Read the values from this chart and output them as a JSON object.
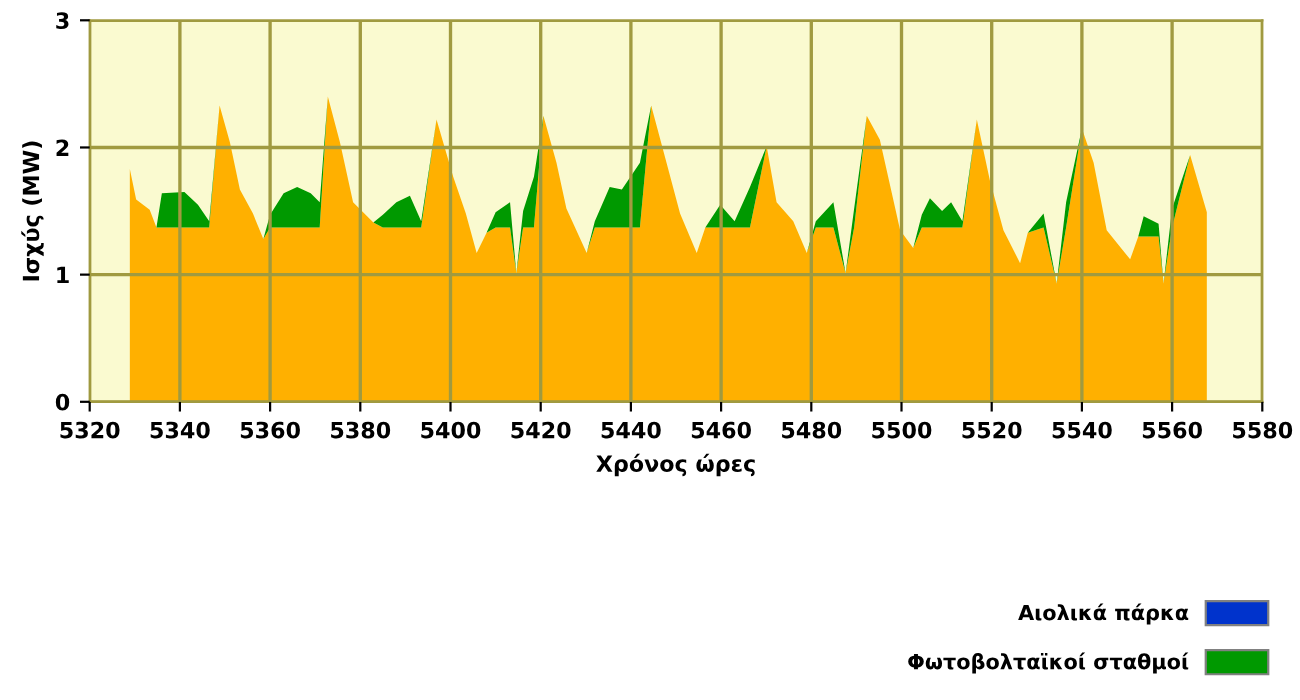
{
  "chart_data": {
    "type": "area",
    "stacked": true,
    "xlabel": "Χρόνος ώρες",
    "ylabel": "Ισχύς (MW)",
    "x": [
      5328.9,
      5330.3,
      5333.3,
      5334.8,
      5336,
      5341,
      5344,
      5346.5,
      5348.8,
      5351.1,
      5353.3,
      5356.2,
      5358.5,
      5360,
      5363,
      5366,
      5369,
      5371,
      5372.8,
      5375.5,
      5378.4,
      5382.9,
      5385,
      5388,
      5391,
      5393.5,
      5396.9,
      5400.6,
      5403.4,
      5405.8,
      5408,
      5410,
      5413.2,
      5414.6,
      5416.1,
      5418.5,
      5420.6,
      5423.5,
      5425.7,
      5430.2,
      5432,
      5435.3,
      5438,
      5442,
      5444.5,
      5447.9,
      5450.9,
      5454.6,
      5456.5,
      5459.8,
      5463,
      5466.4,
      5470.1,
      5472.3,
      5476,
      5479,
      5481,
      5484.9,
      5487.6,
      5489.5,
      5492.3,
      5495.2,
      5499.7,
      5502.6,
      5504.5,
      5506.3,
      5509,
      5511,
      5513.5,
      5516.7,
      5519.6,
      5522.6,
      5526.3,
      5528,
      5531.5,
      5534.4,
      5536.5,
      5540,
      5542.6,
      5545.5,
      5550.7,
      5552.5,
      5553.7,
      5557,
      5558.1,
      5560,
      5564,
      5567.7
    ],
    "series": [
      {
        "color": "#ffb000",
        "values": [
          1.83,
          1.59,
          1.51,
          1.37,
          1.37,
          1.37,
          1.37,
          1.37,
          2.33,
          2.04,
          1.67,
          1.48,
          1.28,
          1.37,
          1.37,
          1.37,
          1.37,
          1.37,
          2.4,
          2.04,
          1.57,
          1.41,
          1.37,
          1.37,
          1.37,
          1.37,
          2.22,
          1.77,
          1.48,
          1.17,
          1.33,
          1.37,
          1.37,
          1.01,
          1.37,
          1.37,
          2.25,
          1.88,
          1.52,
          1.17,
          1.37,
          1.37,
          1.37,
          1.37,
          2.33,
          1.88,
          1.48,
          1.17,
          1.37,
          1.37,
          1.37,
          1.37,
          2.01,
          1.57,
          1.42,
          1.17,
          1.37,
          1.37,
          1.01,
          1.37,
          2.25,
          2.06,
          1.35,
          1.21,
          1.37,
          1.37,
          1.37,
          1.37,
          1.37,
          2.22,
          1.74,
          1.35,
          1.09,
          1.33,
          1.37,
          0.93,
          1.37,
          2.15,
          1.88,
          1.35,
          1.12,
          1.3,
          1.3,
          1.3,
          0.93,
          1.37,
          1.94,
          1.49
        ]
      },
      {
        "name": "Αιολικά πάρκα",
        "color": "#0033cc",
        "values": [
          null,
          null,
          null,
          null,
          null,
          null,
          null,
          null,
          null,
          null,
          null,
          null,
          null,
          null,
          null,
          null,
          null,
          null,
          null,
          null,
          null,
          null,
          null,
          null,
          null,
          null,
          null,
          null,
          null,
          null,
          null,
          null,
          null,
          null,
          null,
          null,
          null,
          null,
          null,
          null,
          null,
          null,
          null,
          null,
          null,
          null,
          null,
          null,
          null,
          null,
          null,
          null,
          null,
          null,
          null,
          null,
          null,
          null,
          null,
          null,
          null,
          null,
          null,
          null,
          null,
          null,
          null,
          null,
          null,
          null,
          null,
          null,
          null,
          null,
          null,
          null,
          null,
          null,
          null,
          null,
          null,
          null,
          null,
          null,
          null,
          null,
          null,
          null
        ]
      },
      {
        "name": "Φωτοβολταϊκοί σταθμοί",
        "color": "#009900",
        "values": [
          0,
          0,
          0,
          0,
          0.27,
          0.28,
          0.18,
          0.05,
          0,
          0,
          0,
          0,
          0,
          0.1,
          0.27,
          0.32,
          0.27,
          0.2,
          0,
          0,
          0,
          0,
          0.1,
          0.2,
          0.25,
          0.05,
          0,
          0,
          0,
          0,
          0,
          0.12,
          0.2,
          0,
          0.13,
          0.4,
          0,
          0,
          0,
          0,
          0.05,
          0.32,
          0.3,
          0.51,
          0,
          0,
          0,
          0,
          0,
          0.18,
          0.05,
          0.32,
          0,
          0,
          0,
          0,
          0.05,
          0.2,
          0,
          0.15,
          0,
          0,
          0,
          0,
          0.1,
          0.23,
          0.13,
          0.2,
          0.05,
          0,
          0,
          0,
          0,
          0,
          0.11,
          0,
          0.2,
          0,
          0,
          0,
          0,
          0,
          0.16,
          0.1,
          0,
          0.15,
          0,
          0
        ]
      }
    ],
    "xlim": [
      5320,
      5580
    ],
    "xticks": [
      5320,
      5340,
      5360,
      5380,
      5400,
      5420,
      5440,
      5460,
      5480,
      5500,
      5520,
      5540,
      5560,
      5580
    ],
    "ylim": [
      0,
      3
    ],
    "yticks": [
      0,
      1,
      2,
      3
    ],
    "grid": true,
    "legend": "bottom right"
  }
}
